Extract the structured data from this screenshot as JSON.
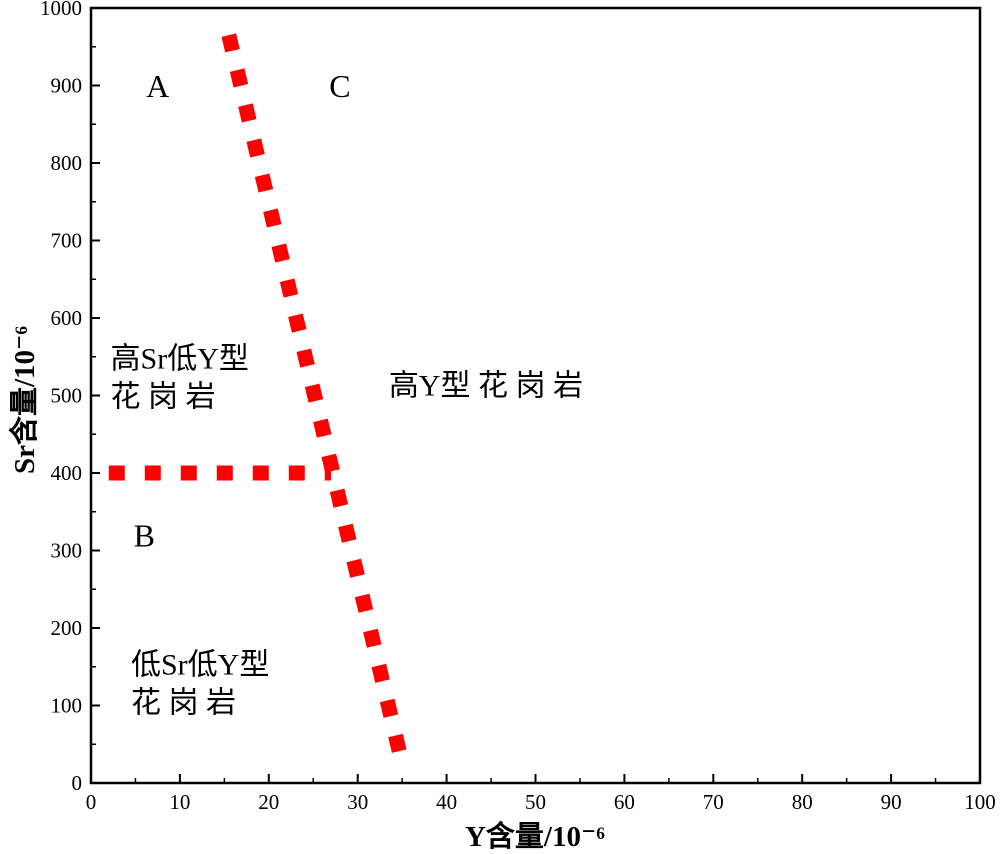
{
  "chart_data": {
    "type": "scatter",
    "xlabel": "Y含量/10⁻⁶",
    "ylabel": "Sr含量/10⁻⁶",
    "xlim": [
      0,
      100
    ],
    "ylim": [
      0,
      1000
    ],
    "xticks": [
      0,
      10,
      20,
      30,
      40,
      50,
      60,
      70,
      80,
      90,
      100
    ],
    "yticks": [
      0,
      100,
      200,
      300,
      400,
      500,
      600,
      700,
      800,
      900,
      1000
    ],
    "grid": false,
    "boundary_lines": [
      {
        "style": "dotted",
        "color": "#ff0000",
        "points": [
          [
            15.5,
            965
          ],
          [
            35,
            25
          ]
        ]
      },
      {
        "style": "dotted",
        "color": "#ff0000",
        "points": [
          [
            2,
            400
          ],
          [
            27,
            400
          ]
        ]
      }
    ],
    "region_labels": [
      {
        "text": "A",
        "x": 7.5,
        "y": 885
      },
      {
        "text": "C",
        "x": 28,
        "y": 885
      },
      {
        "text": "B",
        "x": 6,
        "y": 305
      }
    ],
    "region_names": [
      {
        "lines": [
          "高Sr低Y型",
          "花 岗 岩"
        ],
        "x": 2.2,
        "y": 535
      },
      {
        "lines": [
          "高Y型 花 岗 岩"
        ],
        "x": 33.5,
        "y": 500
      },
      {
        "lines": [
          "低Sr低Y型",
          "花 岗 岩"
        ],
        "x": 4.5,
        "y": 140
      }
    ]
  }
}
